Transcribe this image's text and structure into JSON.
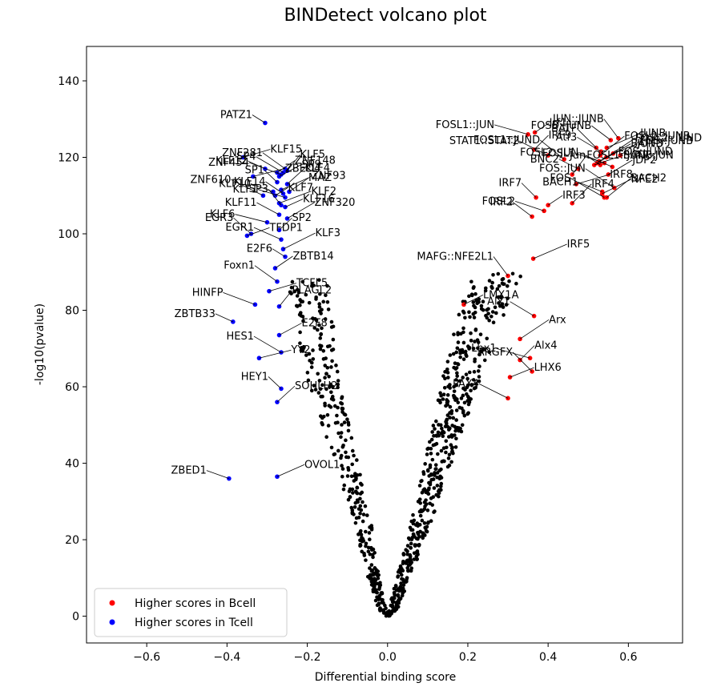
{
  "chart_data": {
    "type": "scatter",
    "title": "BINDetect volcano plot",
    "xlabel": "Differential binding score",
    "ylabel": "-log10(pvalue)",
    "xlim": [
      -0.75,
      0.735
    ],
    "ylim": [
      -7,
      149
    ],
    "xticks": [
      -0.6,
      -0.4,
      -0.2,
      0.0,
      0.2,
      0.4,
      0.6
    ],
    "xtick_labels": [
      "−0.6",
      "−0.4",
      "−0.2",
      "0.0",
      "0.2",
      "0.4",
      "0.6"
    ],
    "yticks": [
      0,
      20,
      40,
      60,
      80,
      100,
      120,
      140
    ],
    "ytick_labels": [
      "0",
      "20",
      "40",
      "60",
      "80",
      "100",
      "120",
      "140"
    ],
    "legend": {
      "position": "bottom-left",
      "entries": [
        {
          "label": "Higher scores in Bcell",
          "color": "#ff0000"
        },
        {
          "label": "Higher scores in Tcell",
          "color": "#0000ff"
        }
      ]
    },
    "colors": {
      "background": "#000000",
      "bcell": "#ff0000",
      "tcell": "#0000ff"
    },
    "background_trend": [
      [
        0.0,
        0
      ],
      [
        0.01,
        2
      ],
      [
        0.02,
        5
      ],
      [
        0.03,
        9
      ],
      [
        0.05,
        15
      ],
      [
        0.07,
        22
      ],
      [
        0.09,
        30
      ],
      [
        0.11,
        38
      ],
      [
        0.13,
        46
      ],
      [
        0.15,
        54
      ],
      [
        0.17,
        62
      ],
      [
        0.19,
        70
      ],
      [
        0.21,
        77
      ],
      [
        0.23,
        83
      ],
      [
        0.25,
        88
      ],
      [
        0.27,
        92
      ]
    ],
    "background_trend_left": [
      [
        0.0,
        0
      ],
      [
        -0.01,
        2
      ],
      [
        -0.02,
        5
      ],
      [
        -0.03,
        10
      ],
      [
        -0.04,
        15
      ],
      [
        -0.05,
        22
      ],
      [
        -0.07,
        30
      ],
      [
        -0.09,
        38
      ],
      [
        -0.11,
        46
      ],
      [
        -0.13,
        54
      ],
      [
        -0.15,
        62
      ],
      [
        -0.16,
        70
      ],
      [
        -0.17,
        78
      ],
      [
        -0.18,
        84
      ],
      [
        -0.19,
        88
      ]
    ],
    "series": [
      {
        "name": "Higher scores in Bcell",
        "color": "#ff0000",
        "points": [
          {
            "label": "Irf1",
            "x": 0.367,
            "y": 126.5
          },
          {
            "label": "FOSB::JUNB",
            "x": 0.556,
            "y": 124.5
          },
          {
            "label": "FOSL2::JUNB",
            "x": 0.53,
            "y": 120.5
          },
          {
            "label": "FOSL1",
            "x": 0.54,
            "y": 118.5
          },
          {
            "label": "JUNB",
            "x": 0.546,
            "y": 122.5
          },
          {
            "label": "JUN::JUNB",
            "x": 0.575,
            "y": 125.0
          },
          {
            "label": "FOS::JUND",
            "x": 0.527,
            "y": 119.0
          },
          {
            "label": "Atf3",
            "x": 0.532,
            "y": 121.5
          },
          {
            "label": "FOSL2::JUND",
            "x": 0.545,
            "y": 120.0
          },
          {
            "label": "FOSL1::JUN",
            "x": 0.35,
            "y": 126.0
          },
          {
            "label": "IRF9",
            "x": 0.365,
            "y": 122.0
          },
          {
            "label": "BATF",
            "x": 0.52,
            "y": 122.5
          },
          {
            "label": "JUND",
            "x": 0.562,
            "y": 121.0
          },
          {
            "label": "STAT1::STAT2",
            "x": 0.4,
            "y": 120.5
          },
          {
            "label": "BATF3",
            "x": 0.522,
            "y": 118.5
          },
          {
            "label": "Jun",
            "x": 0.53,
            "y": 118.0
          },
          {
            "label": "FOS::JUNB",
            "x": 0.58,
            "y": 120.5
          },
          {
            "label": "FOSL1::JUND",
            "x": 0.44,
            "y": 119.5
          },
          {
            "label": "BATF::JUN",
            "x": 0.515,
            "y": 118.0
          },
          {
            "label": "FOSL2::JUN",
            "x": 0.56,
            "y": 117.5
          },
          {
            "label": "FOSL1::JUNB",
            "x": 0.46,
            "y": 115.5
          },
          {
            "label": "BNC2",
            "x": 0.475,
            "y": 117.0
          },
          {
            "label": "JDP2",
            "x": 0.55,
            "y": 115.5
          },
          {
            "label": "FOS::JUN",
            "x": 0.565,
            "y": 112.0
          },
          {
            "label": "IRF8",
            "x": 0.47,
            "y": 113.0
          },
          {
            "label": "IRF7",
            "x": 0.37,
            "y": 109.5
          },
          {
            "label": "IRF4",
            "x": 0.46,
            "y": 108.0
          },
          {
            "label": "BACH1",
            "x": 0.535,
            "y": 111.0
          },
          {
            "label": "NFE2",
            "x": 0.535,
            "y": 110.5
          },
          {
            "label": "FOS",
            "x": 0.54,
            "y": 109.5
          },
          {
            "label": "IRF3",
            "x": 0.4,
            "y": 107.5
          },
          {
            "label": "IRF2",
            "x": 0.36,
            "y": 104.5
          },
          {
            "label": "BACH2",
            "x": 0.546,
            "y": 109.5
          },
          {
            "label": "FOSL2",
            "x": 0.39,
            "y": 106.0
          },
          {
            "label": "IRF5",
            "x": 0.363,
            "y": 93.5
          },
          {
            "label": "MAFG::NFE2L1",
            "x": 0.3,
            "y": 89.0
          },
          {
            "label": "LMX1A",
            "x": 0.19,
            "y": 81.5
          },
          {
            "label": "Alx1",
            "x": 0.365,
            "y": 78.5
          },
          {
            "label": "Arx",
            "x": 0.33,
            "y": 72.5
          },
          {
            "label": "Lhx1",
            "x": 0.355,
            "y": 67.5
          },
          {
            "label": "Alx4",
            "x": 0.33,
            "y": 67.0
          },
          {
            "label": "ARGFX",
            "x": 0.36,
            "y": 64.0
          },
          {
            "label": "LHX6",
            "x": 0.305,
            "y": 62.5
          },
          {
            "label": "PAX4",
            "x": 0.3,
            "y": 57.0
          }
        ]
      },
      {
        "name": "Higher scores in Tcell",
        "color": "#0000ff",
        "points": [
          {
            "label": "PATZ1",
            "x": -0.305,
            "y": 129.0
          },
          {
            "label": "ZNF148",
            "x": -0.275,
            "y": 116.0
          },
          {
            "label": "ZNF281",
            "x": -0.255,
            "y": 117.0
          },
          {
            "label": "KLF15",
            "x": -0.36,
            "y": 120.0
          },
          {
            "label": "ZNF454",
            "x": -0.265,
            "y": 115.5
          },
          {
            "label": "KLF5",
            "x": -0.25,
            "y": 116.5
          },
          {
            "label": "KLF12",
            "x": -0.305,
            "y": 117.0
          },
          {
            "label": "SP9",
            "x": -0.27,
            "y": 115.0
          },
          {
            "label": "SP4",
            "x": -0.26,
            "y": 116.0
          },
          {
            "label": "ZBED4",
            "x": -0.335,
            "y": 115.0
          },
          {
            "label": "SP1",
            "x": -0.275,
            "y": 113.5
          },
          {
            "label": "KLF4",
            "x": -0.25,
            "y": 113.0
          },
          {
            "label": "KLF10",
            "x": -0.285,
            "y": 111.0
          },
          {
            "label": "MAZ",
            "x": -0.265,
            "y": 111.5
          },
          {
            "label": "ZNF610",
            "x": -0.31,
            "y": 110.0
          },
          {
            "label": "KLF7",
            "x": -0.28,
            "y": 110.0
          },
          {
            "label": "KLF14",
            "x": -0.26,
            "y": 110.5
          },
          {
            "label": "ZNF93",
            "x": -0.245,
            "y": 111.0
          },
          {
            "label": "KLF1",
            "x": -0.255,
            "y": 109.5
          },
          {
            "label": "KLF2",
            "x": -0.27,
            "y": 108.0
          },
          {
            "label": "SP3",
            "x": -0.265,
            "y": 107.5
          },
          {
            "label": "KLF16",
            "x": -0.255,
            "y": 107.0
          },
          {
            "label": "KLF11",
            "x": -0.27,
            "y": 105.0
          },
          {
            "label": "ZNF320",
            "x": -0.25,
            "y": 104.0
          },
          {
            "label": "KLF6",
            "x": -0.3,
            "y": 103.0
          },
          {
            "label": "SP2",
            "x": -0.27,
            "y": 101.0
          },
          {
            "label": "EGR3",
            "x": -0.34,
            "y": 100.0
          },
          {
            "label": "TFDP1",
            "x": -0.35,
            "y": 99.5
          },
          {
            "label": "EGR1",
            "x": -0.265,
            "y": 98.5
          },
          {
            "label": "KLF3",
            "x": -0.26,
            "y": 96.0
          },
          {
            "label": "E2F6",
            "x": -0.255,
            "y": 94.0
          },
          {
            "label": "ZBTB14",
            "x": -0.28,
            "y": 91.0
          },
          {
            "label": "Foxn1",
            "x": -0.275,
            "y": 87.5
          },
          {
            "label": "TCFL5",
            "x": -0.295,
            "y": 85.0
          },
          {
            "label": "HINFP",
            "x": -0.33,
            "y": 81.5
          },
          {
            "label": "PLAGL2",
            "x": -0.27,
            "y": 81.0
          },
          {
            "label": "ZBTB33",
            "x": -0.385,
            "y": 77.0
          },
          {
            "label": "E2F8",
            "x": -0.27,
            "y": 73.5
          },
          {
            "label": "HES1",
            "x": -0.265,
            "y": 69.0
          },
          {
            "label": "YY2",
            "x": -0.32,
            "y": 67.5
          },
          {
            "label": "HEY1",
            "x": -0.265,
            "y": 59.5
          },
          {
            "label": "SOHLH2",
            "x": -0.275,
            "y": 56.0
          },
          {
            "label": "ZBED1",
            "x": -0.395,
            "y": 36.0
          },
          {
            "label": "OVOL1",
            "x": -0.275,
            "y": 36.5
          }
        ]
      }
    ]
  }
}
